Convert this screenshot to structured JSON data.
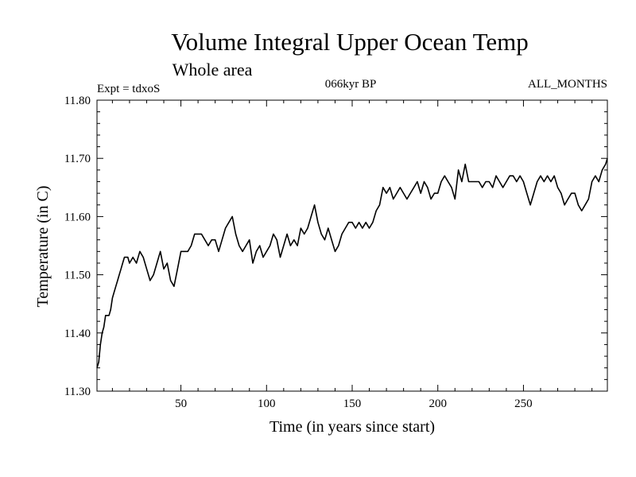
{
  "chart_data": {
    "type": "line",
    "title": "Volume Integral Upper Ocean Temp",
    "subtitle": "Whole area",
    "experiment": "Expt = tdxoS",
    "period": "066kyr BP",
    "months": "ALL_MONTHS",
    "xlabel": "Time (in years since start)",
    "ylabel": "Temperature (in C)",
    "xlim": [
      1,
      299
    ],
    "ylim": [
      11.3,
      11.8
    ],
    "x_ticks": [
      50,
      100,
      150,
      200,
      250
    ],
    "y_ticks": [
      "11.30",
      "11.40",
      "11.50",
      "11.60",
      "11.70",
      "11.80"
    ],
    "grid": false,
    "series": [
      {
        "x": [
          1,
          2,
          3,
          4,
          5,
          6,
          7,
          8,
          9,
          10,
          11,
          12,
          13,
          14,
          15,
          16,
          17,
          18,
          19,
          20,
          22,
          24,
          26,
          28,
          30,
          32,
          34,
          36,
          38,
          40,
          42,
          44,
          46,
          48,
          50,
          52,
          54,
          56,
          58,
          60,
          62,
          64,
          66,
          68,
          70,
          72,
          74,
          76,
          78,
          80,
          82,
          84,
          86,
          88,
          90,
          92,
          94,
          96,
          98,
          100,
          102,
          104,
          106,
          108,
          110,
          112,
          114,
          116,
          118,
          120,
          122,
          124,
          126,
          128,
          130,
          132,
          134,
          136,
          138,
          140,
          142,
          144,
          146,
          148,
          150,
          152,
          154,
          156,
          158,
          160,
          162,
          164,
          166,
          168,
          170,
          172,
          174,
          176,
          178,
          180,
          182,
          184,
          186,
          188,
          190,
          192,
          194,
          196,
          198,
          200,
          202,
          204,
          206,
          208,
          210,
          212,
          214,
          216,
          218,
          220,
          222,
          224,
          226,
          228,
          230,
          232,
          234,
          236,
          238,
          240,
          242,
          244,
          246,
          248,
          250,
          252,
          254,
          256,
          258,
          260,
          262,
          264,
          266,
          268,
          270,
          272,
          274,
          276,
          278,
          280,
          282,
          284,
          286,
          288,
          290,
          292,
          294,
          296,
          298,
          299
        ],
        "y": [
          11.34,
          11.35,
          11.38,
          11.4,
          11.41,
          11.43,
          11.43,
          11.43,
          11.44,
          11.46,
          11.47,
          11.48,
          11.49,
          11.5,
          11.51,
          11.52,
          11.53,
          11.53,
          11.53,
          11.52,
          11.53,
          11.52,
          11.54,
          11.53,
          11.51,
          11.49,
          11.5,
          11.52,
          11.54,
          11.51,
          11.52,
          11.49,
          11.48,
          11.51,
          11.54,
          11.54,
          11.54,
          11.55,
          11.57,
          11.57,
          11.57,
          11.56,
          11.55,
          11.56,
          11.56,
          11.54,
          11.56,
          11.58,
          11.59,
          11.6,
          11.57,
          11.55,
          11.54,
          11.55,
          11.56,
          11.52,
          11.54,
          11.55,
          11.53,
          11.54,
          11.55,
          11.57,
          11.56,
          11.53,
          11.55,
          11.57,
          11.55,
          11.56,
          11.55,
          11.58,
          11.57,
          11.58,
          11.6,
          11.62,
          11.59,
          11.57,
          11.56,
          11.58,
          11.56,
          11.54,
          11.55,
          11.57,
          11.58,
          11.59,
          11.59,
          11.58,
          11.59,
          11.58,
          11.59,
          11.58,
          11.59,
          11.61,
          11.62,
          11.65,
          11.64,
          11.65,
          11.63,
          11.64,
          11.65,
          11.64,
          11.63,
          11.64,
          11.65,
          11.66,
          11.64,
          11.66,
          11.65,
          11.63,
          11.64,
          11.64,
          11.66,
          11.67,
          11.66,
          11.65,
          11.63,
          11.68,
          11.66,
          11.69,
          11.66,
          11.66,
          11.66,
          11.66,
          11.65,
          11.66,
          11.66,
          11.65,
          11.67,
          11.66,
          11.65,
          11.66,
          11.67,
          11.67,
          11.66,
          11.67,
          11.66,
          11.64,
          11.62,
          11.64,
          11.66,
          11.67,
          11.66,
          11.67,
          11.66,
          11.67,
          11.65,
          11.64,
          11.62,
          11.63,
          11.64,
          11.64,
          11.62,
          11.61,
          11.62,
          11.63,
          11.66,
          11.67,
          11.66,
          11.68,
          11.69,
          11.7
        ]
      }
    ]
  }
}
